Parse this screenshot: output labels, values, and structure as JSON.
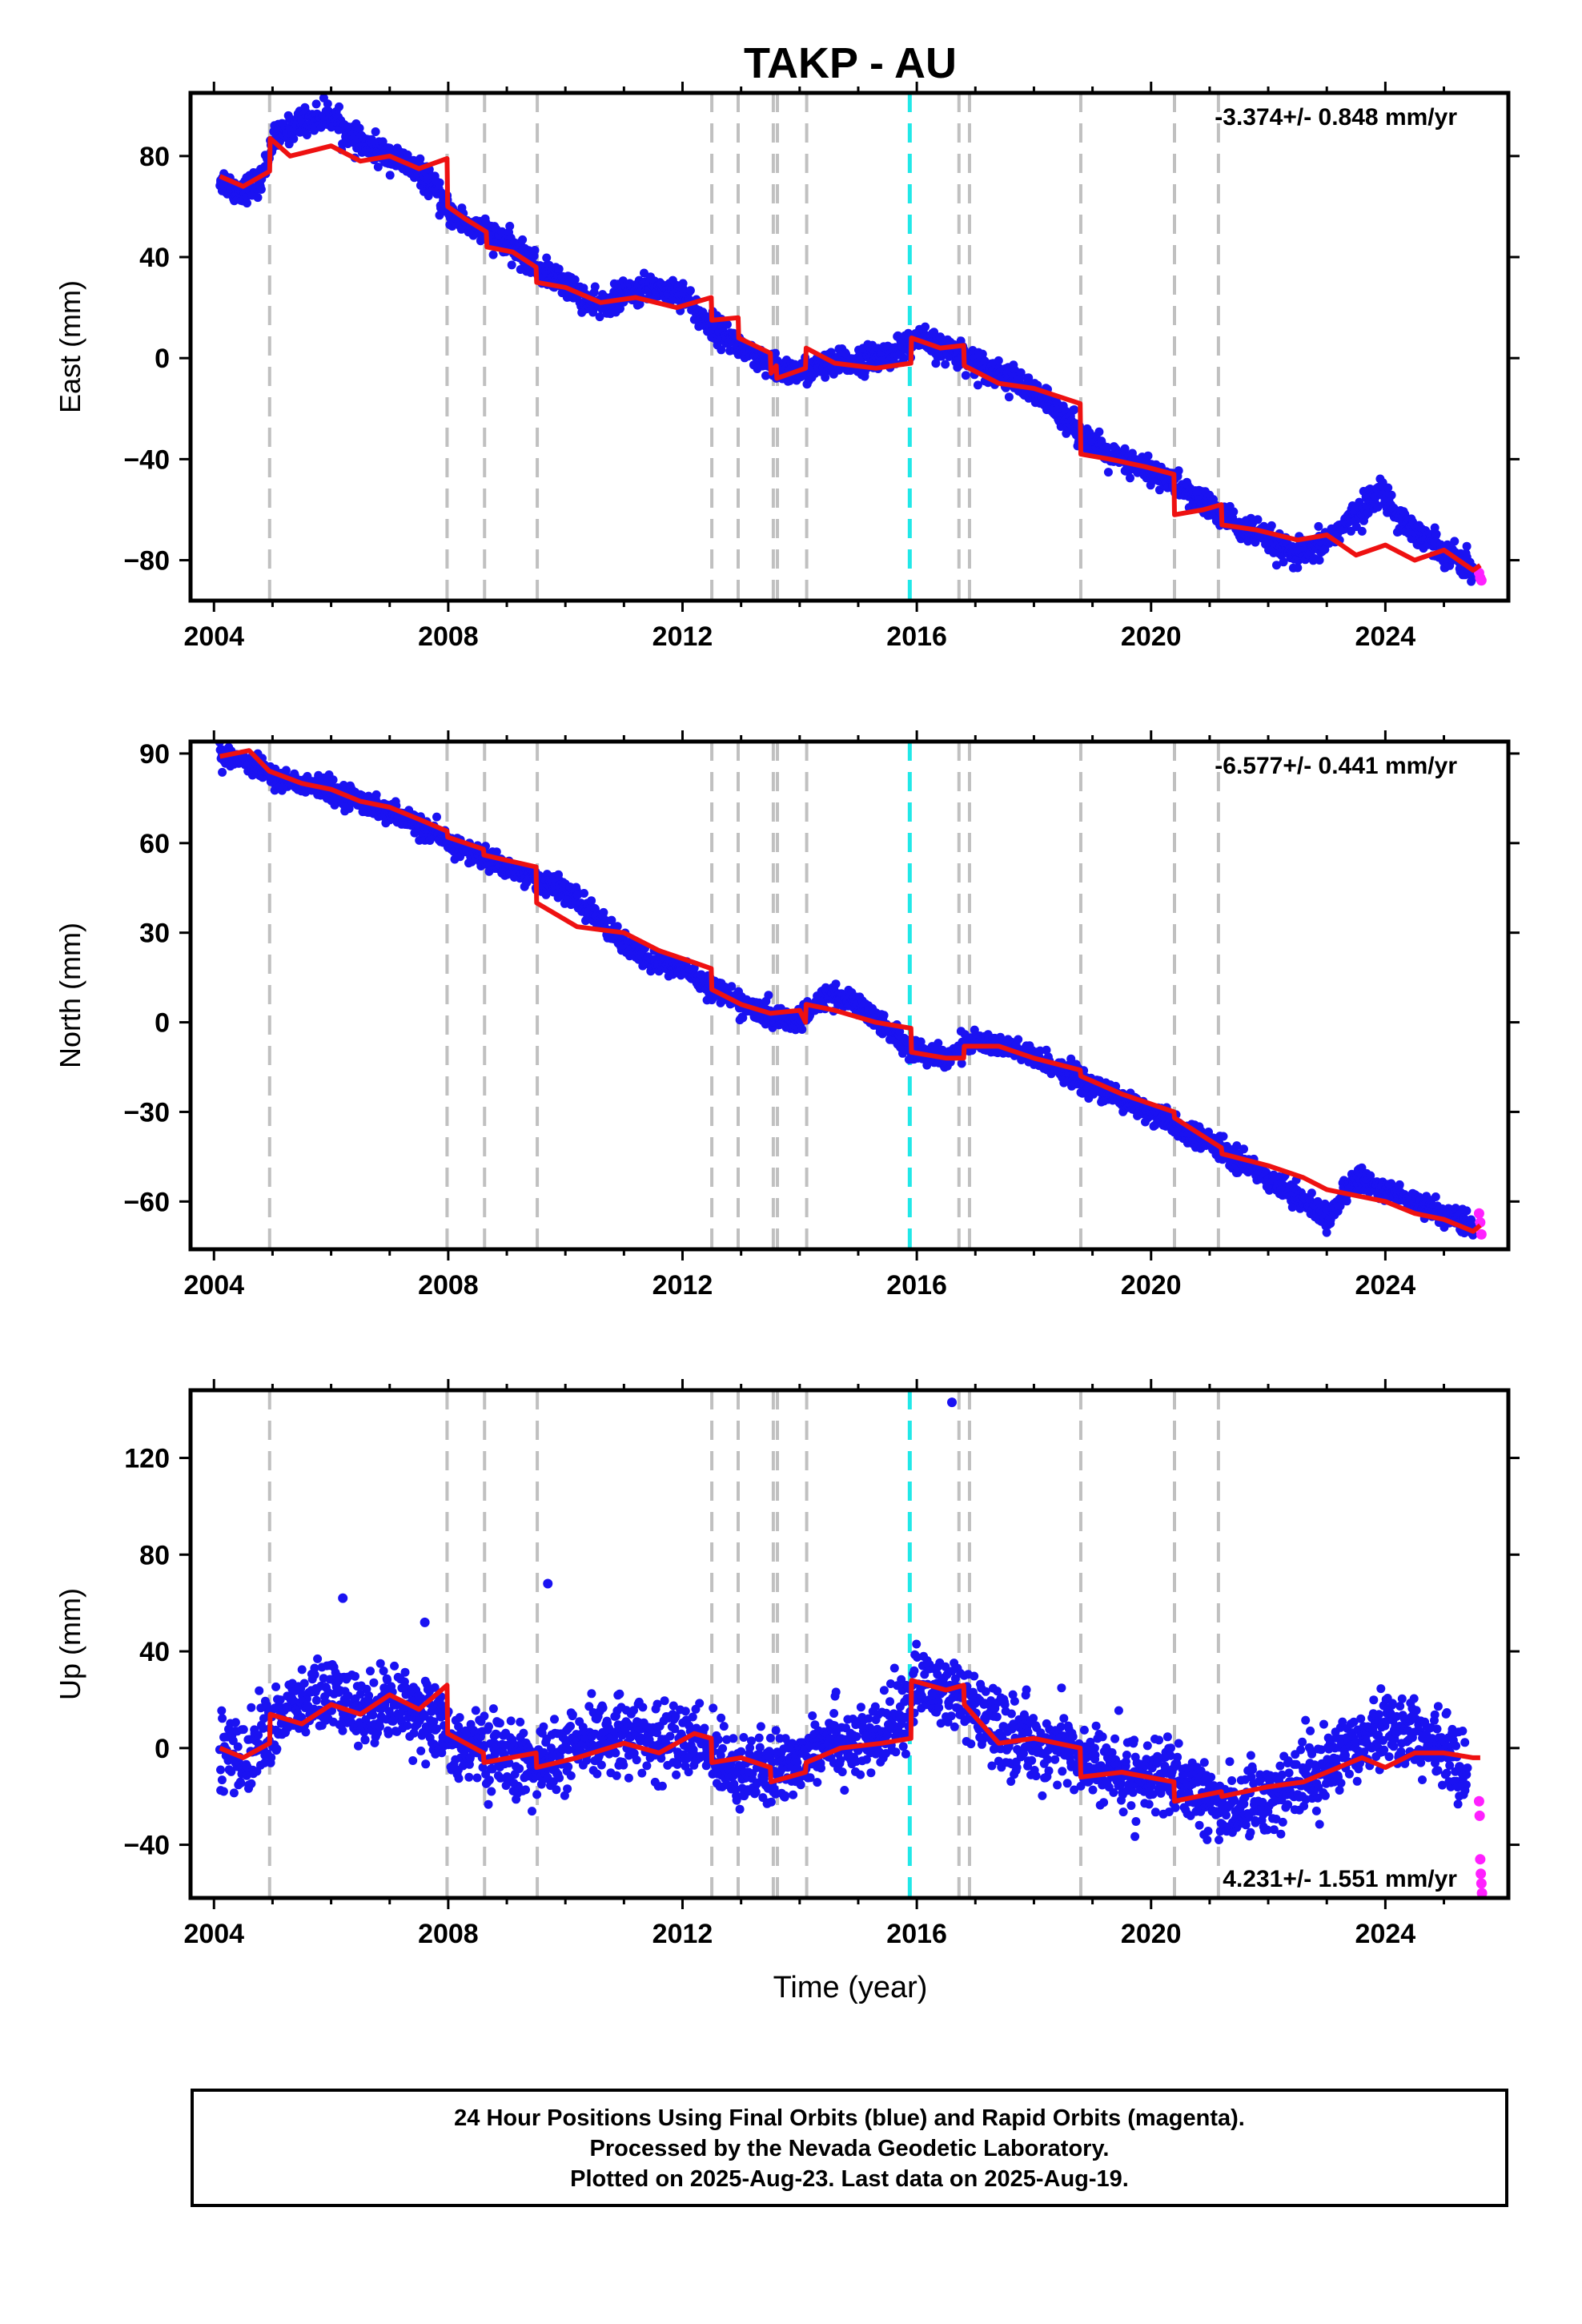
{
  "title": "TAKP - AU",
  "xlabel": "Time (year)",
  "caption": [
    "24 Hour Positions Using Final Orbits (blue) and Rapid Orbits (magenta).",
    "Processed by the Nevada Geodetic Laboratory.",
    "Plotted on 2025-Aug-23. Last data on 2025-Aug-19."
  ],
  "colors": {
    "final_points": "#1a12f2",
    "rapid_points": "#ff20ff",
    "model_line": "#ee1111",
    "step_lines": "#c0c0c0",
    "equipment_step_line": "#22e8e8"
  },
  "chart_data": [
    {
      "type": "scatter",
      "panel": "east",
      "ylabel": "East (mm)",
      "rate_text": "-3.374+/- 0.848 mm/yr",
      "xlim": [
        2003.6,
        2026.1
      ],
      "ylim": [
        -96,
        105
      ],
      "xticks": [
        2004,
        2008,
        2012,
        2016,
        2020,
        2024
      ],
      "yticks": [
        -80,
        -40,
        0,
        40,
        80
      ],
      "series": [
        {
          "role": "final",
          "x": [
            2004.1,
            2004.4,
            2004.8,
            2005.0,
            2005.5,
            2006.0,
            2006.4,
            2006.8,
            2007.2,
            2007.6,
            2008.0,
            2008.4,
            2008.8,
            2009.2,
            2009.6,
            2010.0,
            2010.5,
            2011.0,
            2011.5,
            2012.0,
            2012.4,
            2012.8,
            2013.2,
            2013.6,
            2014.0,
            2014.4,
            2014.8,
            2015.2,
            2015.6,
            2016.0,
            2016.4,
            2016.8,
            2017.2,
            2017.6,
            2018.0,
            2018.4,
            2018.8,
            2019.2,
            2019.6,
            2020.0,
            2020.4,
            2020.8,
            2021.2,
            2021.6,
            2022.0,
            2022.4,
            2022.8,
            2023.2,
            2023.6,
            2023.9,
            2024.2,
            2024.6,
            2025.0,
            2025.4,
            2025.55
          ],
          "y": [
            71,
            66,
            70,
            86,
            94,
            96,
            86,
            82,
            78,
            72,
            58,
            52,
            48,
            42,
            34,
            30,
            20,
            25,
            28,
            26,
            14,
            8,
            0,
            -4,
            -6,
            -3,
            -2,
            0,
            2,
            8,
            4,
            1,
            -4,
            -8,
            -14,
            -20,
            -30,
            -38,
            -42,
            -44,
            -50,
            -56,
            -62,
            -68,
            -72,
            -78,
            -76,
            -68,
            -60,
            -52,
            -62,
            -70,
            -76,
            -82,
            -87
          ]
        },
        {
          "role": "rapid",
          "x": [
            2025.6,
            2025.62,
            2025.64
          ],
          "y": [
            -85,
            -87,
            -88
          ]
        },
        {
          "role": "model",
          "x": [
            2004.1,
            2004.5,
            2004.95,
            2004.96,
            2005.3,
            2006.0,
            2006.5,
            2007.0,
            2007.5,
            2007.98,
            2007.99,
            2008.3,
            2008.65,
            2008.66,
            2009.1,
            2009.5,
            2009.51,
            2010.0,
            2010.6,
            2011.2,
            2011.9,
            2012.49,
            2012.5,
            2012.95,
            2012.96,
            2013.5,
            2013.51,
            2013.6,
            2013.61,
            2014.1,
            2014.11,
            2014.6,
            2015.3,
            2015.9,
            2015.91,
            2016.4,
            2016.8,
            2016.81,
            2017.4,
            2018.0,
            2018.79,
            2018.8,
            2019.3,
            2019.9,
            2020.39,
            2020.4,
            2020.9,
            2021.2,
            2021.21,
            2021.8,
            2022.5,
            2023.0,
            2023.5,
            2024.0,
            2024.5,
            2025.0,
            2025.5,
            2025.62
          ],
          "y": [
            72,
            68,
            74,
            87,
            80,
            84,
            78,
            80,
            75,
            79,
            60,
            55,
            50,
            44,
            42,
            36,
            30,
            28,
            22,
            24,
            20,
            24,
            15,
            16,
            8,
            2,
            -6,
            -3,
            -8,
            -4,
            4,
            -2,
            -4,
            -2,
            8,
            4,
            5,
            -3,
            -10,
            -12,
            -18,
            -38,
            -40,
            -43,
            -46,
            -62,
            -60,
            -58,
            -66,
            -68,
            -72,
            -70,
            -78,
            -74,
            -80,
            -76,
            -84,
            -82
          ]
        }
      ]
    },
    {
      "type": "scatter",
      "panel": "north",
      "ylabel": "North (mm)",
      "rate_text": "-6.577+/- 0.441 mm/yr",
      "xlim": [
        2003.6,
        2026.1
      ],
      "ylim": [
        -76,
        94
      ],
      "xticks": [
        2004,
        2008,
        2012,
        2016,
        2020,
        2024
      ],
      "yticks": [
        -60,
        -30,
        0,
        30,
        60,
        90
      ],
      "series": [
        {
          "role": "final",
          "x": [
            2004.1,
            2004.5,
            2005.0,
            2005.5,
            2006.0,
            2006.5,
            2007.0,
            2007.5,
            2008.0,
            2008.5,
            2009.0,
            2009.5,
            2010.0,
            2010.5,
            2011.0,
            2011.5,
            2012.0,
            2012.5,
            2013.0,
            2013.5,
            2014.0,
            2014.5,
            2015.0,
            2015.5,
            2016.0,
            2016.5,
            2017.0,
            2017.5,
            2018.0,
            2018.5,
            2019.0,
            2019.5,
            2020.0,
            2020.5,
            2021.0,
            2021.5,
            2022.0,
            2022.5,
            2023.0,
            2023.5,
            2024.0,
            2024.5,
            2025.0,
            2025.5
          ],
          "y": [
            90,
            88,
            82,
            80,
            78,
            74,
            70,
            66,
            60,
            56,
            52,
            48,
            44,
            36,
            26,
            20,
            18,
            12,
            6,
            2,
            0,
            10,
            6,
            -2,
            -10,
            -12,
            -6,
            -8,
            -12,
            -16,
            -22,
            -26,
            -30,
            -36,
            -40,
            -46,
            -52,
            -58,
            -66,
            -52,
            -56,
            -60,
            -64,
            -68
          ]
        },
        {
          "role": "rapid",
          "x": [
            2025.6,
            2025.62,
            2025.64
          ],
          "y": [
            -64,
            -67,
            -71
          ]
        },
        {
          "role": "model",
          "x": [
            2004.1,
            2004.6,
            2004.95,
            2004.96,
            2005.5,
            2006.0,
            2006.5,
            2007.0,
            2007.5,
            2007.98,
            2007.99,
            2008.6,
            2008.61,
            2009.5,
            2009.51,
            2010.2,
            2011.0,
            2011.6,
            2012.2,
            2012.49,
            2012.5,
            2013.0,
            2013.5,
            2014.0,
            2014.1,
            2014.11,
            2014.6,
            2015.3,
            2015.9,
            2015.91,
            2016.5,
            2016.8,
            2016.81,
            2017.4,
            2018.0,
            2018.79,
            2018.8,
            2019.5,
            2020.39,
            2020.4,
            2021.2,
            2021.21,
            2022.0,
            2022.6,
            2023.0,
            2023.5,
            2024.0,
            2024.5,
            2025.0,
            2025.5,
            2025.62
          ],
          "y": [
            89,
            91,
            84,
            84,
            80,
            78,
            74,
            72,
            68,
            64,
            62,
            58,
            56,
            52,
            40,
            32,
            30,
            24,
            20,
            18,
            11,
            6,
            3,
            4,
            0,
            6,
            4,
            0,
            -2,
            -10,
            -12,
            -12,
            -8,
            -8,
            -12,
            -16,
            -18,
            -24,
            -30,
            -32,
            -42,
            -44,
            -48,
            -52,
            -56,
            -58,
            -60,
            -64,
            -66,
            -70,
            -68
          ]
        }
      ]
    },
    {
      "type": "scatter",
      "panel": "up",
      "ylabel": "Up (mm)",
      "rate_text": "4.231+/- 1.551 mm/yr",
      "xlim": [
        2003.6,
        2026.1
      ],
      "ylim": [
        -62,
        148
      ],
      "xticks": [
        2004,
        2008,
        2012,
        2016,
        2020,
        2024
      ],
      "yticks": [
        -40,
        0,
        40,
        80,
        120
      ],
      "series": [
        {
          "role": "final",
          "x": [
            2004.1,
            2004.5,
            2005.0,
            2005.5,
            2006.0,
            2006.5,
            2007.0,
            2007.5,
            2008.0,
            2008.5,
            2009.0,
            2009.5,
            2010.0,
            2010.5,
            2011.0,
            2011.5,
            2012.0,
            2012.5,
            2013.0,
            2013.5,
            2014.0,
            2014.5,
            2015.0,
            2015.5,
            2016.0,
            2016.5,
            2017.0,
            2017.5,
            2018.0,
            2018.5,
            2019.0,
            2019.5,
            2020.0,
            2020.5,
            2021.0,
            2021.5,
            2022.0,
            2022.5,
            2023.0,
            2023.5,
            2024.0,
            2024.5,
            2025.0,
            2025.4
          ],
          "y": [
            0,
            -6,
            10,
            18,
            22,
            14,
            20,
            16,
            4,
            0,
            -4,
            -8,
            -2,
            2,
            8,
            2,
            4,
            -2,
            -8,
            -12,
            -4,
            6,
            0,
            6,
            26,
            24,
            14,
            6,
            2,
            0,
            -6,
            -12,
            -10,
            -16,
            -22,
            -24,
            -20,
            -14,
            -8,
            4,
            10,
            6,
            -2,
            -8
          ]
        },
        {
          "role": "outliers",
          "x": [
            2006.2,
            2007.6,
            2009.7,
            2016.6
          ],
          "y": [
            62,
            52,
            68,
            143
          ]
        },
        {
          "role": "rapid",
          "x": [
            2025.6,
            2025.61,
            2025.62,
            2025.63,
            2025.64,
            2025.65
          ],
          "y": [
            -22,
            -28,
            -46,
            -52,
            -56,
            -60
          ]
        },
        {
          "role": "model",
          "x": [
            2004.1,
            2004.5,
            2004.95,
            2004.96,
            2005.5,
            2006.0,
            2006.5,
            2007.0,
            2007.5,
            2007.98,
            2007.99,
            2008.6,
            2008.61,
            2009.5,
            2009.51,
            2010.2,
            2011.0,
            2011.6,
            2012.2,
            2012.49,
            2012.5,
            2013.0,
            2013.5,
            2013.51,
            2014.1,
            2014.11,
            2014.7,
            2015.4,
            2015.9,
            2015.91,
            2016.5,
            2016.8,
            2016.81,
            2017.4,
            2018.0,
            2018.79,
            2018.8,
            2019.5,
            2020.39,
            2020.4,
            2021.2,
            2021.21,
            2022.0,
            2022.6,
            2023.0,
            2023.6,
            2024.0,
            2024.5,
            2025.0,
            2025.5,
            2025.62
          ],
          "y": [
            0,
            -4,
            2,
            14,
            10,
            18,
            14,
            22,
            16,
            26,
            6,
            -2,
            -6,
            -2,
            -8,
            -4,
            2,
            -2,
            6,
            4,
            -6,
            -4,
            -8,
            -14,
            -10,
            -6,
            0,
            2,
            4,
            28,
            24,
            26,
            18,
            2,
            4,
            0,
            -12,
            -10,
            -14,
            -22,
            -18,
            -20,
            -16,
            -14,
            -10,
            -4,
            -8,
            -2,
            -2,
            -4,
            -4
          ]
        }
      ]
    }
  ],
  "step_lines": {
    "generic": [
      2004.95,
      2007.98,
      2008.62,
      2009.52,
      2012.5,
      2012.95,
      2013.55,
      2013.62,
      2014.12,
      2016.72,
      2016.9,
      2018.8,
      2020.4,
      2021.15
    ],
    "equipment": [
      2015.88
    ]
  }
}
